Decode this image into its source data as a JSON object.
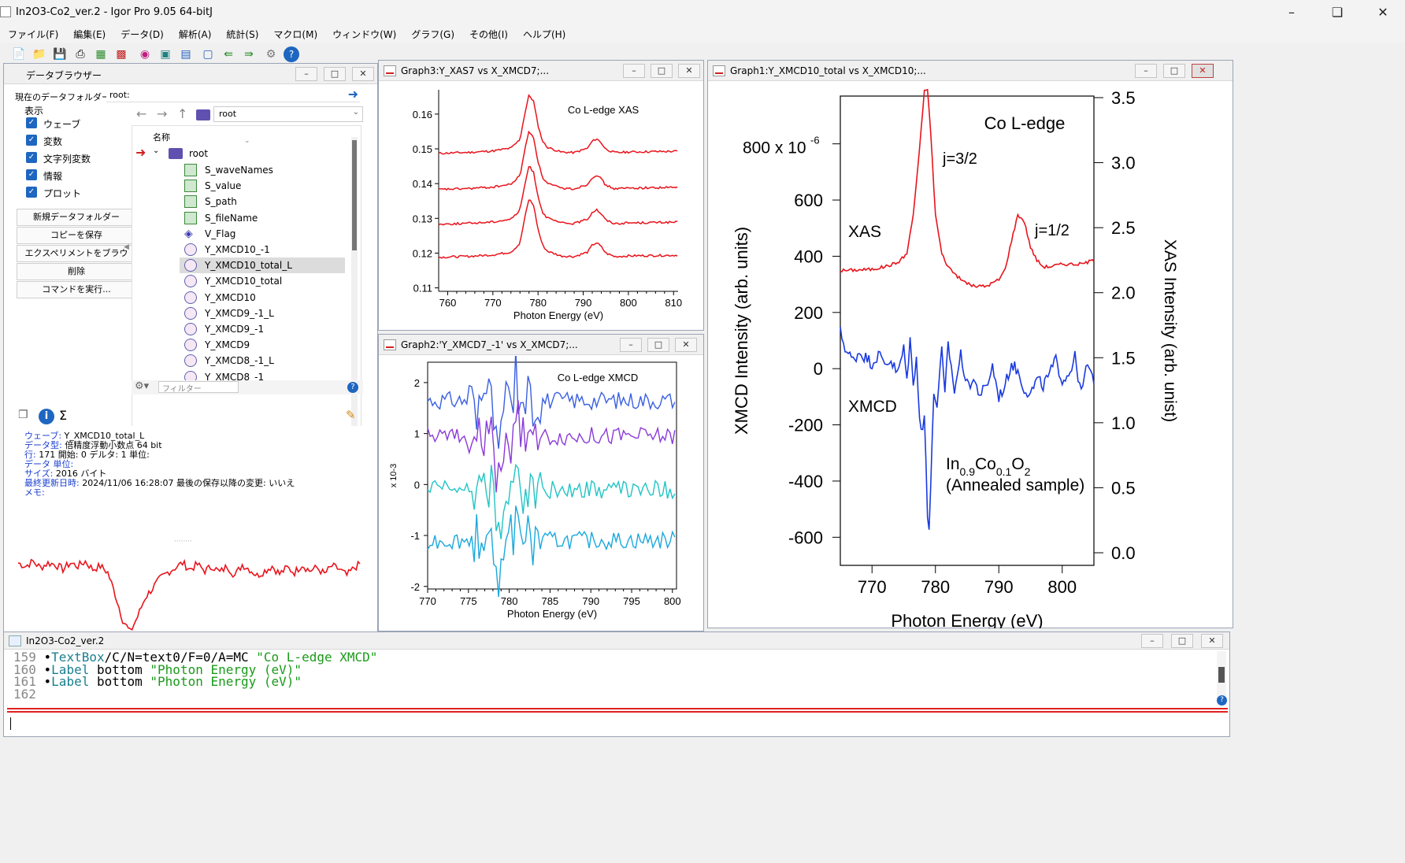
{
  "app": {
    "title": "In2O3-Co2_ver.2 - Igor Pro 9.05 64-bitJ"
  },
  "menu": [
    "ファイル(F)",
    "編集(E)",
    "データ(D)",
    "解析(A)",
    "統計(S)",
    "マクロ(M)",
    "ウィンドウ(W)",
    "グラフ(G)",
    "その他(I)",
    "ヘルプ(H)"
  ],
  "toolbar": {
    "icons": [
      "new-icon",
      "open-folder-icon",
      "save-icon",
      "print-icon",
      "table-icon",
      "graph-icon",
      "wave-icon",
      "browse-icon",
      "layout-icon",
      "window-icon",
      "back-arrow-icon",
      "forward-arrow-icon",
      "settings-icon",
      "help-icon"
    ]
  },
  "data_browser": {
    "title": "データブラウザー",
    "current_folder_label": "現在のデータフォルダー:",
    "current_folder_value": "root:",
    "display_label": "表示",
    "checkboxes": [
      "ウェーブ",
      "変数",
      "文字列変数",
      "情報",
      "プロット"
    ],
    "buttons": [
      "新規データフォルダー",
      "コピーを保存",
      "エクスペリメントをブラウズ...",
      "削除",
      "コマンドを実行..."
    ],
    "path_value": "root",
    "name_header": "名称",
    "root_label": "root",
    "items": [
      "S_waveNames",
      "S_value",
      "S_path",
      "S_fileName",
      "V_Flag",
      "Y_XMCD10_-1",
      "Y_XMCD10_total_L",
      "Y_XMCD10_total",
      "Y_XMCD10",
      "Y_XMCD9_-1_L",
      "Y_XMCD9_-1",
      "Y_XMCD9",
      "Y_XMCD8_-1_L",
      "Y_XMCD8_-1"
    ],
    "filter_placeholder": "フィルター",
    "info": [
      {
        "k": "ウェーブ:",
        "v": " Y_XMCD10_total_L"
      },
      {
        "k": "データ型:",
        "v": " 倍精度浮動小数点 64 bit"
      },
      {
        "k": "行:",
        "v": " 171  開始: 0  デルタ: 1  単位:"
      },
      {
        "k": "データ 単位:",
        "v": ""
      },
      {
        "k": "サイズ:",
        "v": " 2016 バイト"
      },
      {
        "k": "最終更新日時:",
        "v": "  2024/11/06 16:28:07   最後の保存以降の変更: いいえ"
      },
      {
        "k": "メモ:",
        "v": ""
      }
    ]
  },
  "graph3": {
    "title": "Graph3:Y_XAS7 vs X_XMCD7;..."
  },
  "graph2": {
    "title": "Graph2:'Y_XMCD7_-1' vs X_XMCD7;..."
  },
  "graph1": {
    "title": "Graph1:Y_XMCD10_total vs X_XMCD10;..."
  },
  "command_window": {
    "title": "In2O3-Co2_ver.2",
    "lines": [
      {
        "num": "159",
        "kw": "TextBox",
        "rest": "/C/N=text0/F=0/A=MC ",
        "str": "\"Co L-edge XMCD\""
      },
      {
        "num": "160",
        "kw": "Label",
        "rest": " bottom ",
        "str": "\"Photon Energy (eV)\""
      },
      {
        "num": "161",
        "kw": "Label",
        "rest": " bottom ",
        "str": "\"Photon Energy (eV)\""
      },
      {
        "num": "162",
        "kw": "",
        "rest": "",
        "str": ""
      }
    ]
  },
  "chart_data": [
    {
      "type": "line",
      "title": "Co L-edge XAS",
      "xlabel": "Photon Energy (eV)",
      "ylabel": "",
      "xlim": [
        758,
        811
      ],
      "ylim": [
        0.109,
        0.167
      ],
      "xticks": [
        "760",
        "770",
        "780",
        "790",
        "800",
        "810"
      ],
      "yticks": [
        "0.11",
        "0.12",
        "0.13",
        "0.14",
        "0.15",
        "0.16"
      ],
      "color": "#e8141c",
      "series": [
        {
          "offset": 0.1487
        },
        {
          "offset": 0.1383
        },
        {
          "offset": 0.1283
        },
        {
          "offset": 0.1188
        }
      ],
      "shape": {
        "x": [
          758,
          765,
          770,
          774,
          776,
          777,
          778,
          779,
          780,
          781,
          782,
          785,
          788,
          791,
          792,
          793,
          794,
          795,
          797,
          800,
          805,
          811
        ],
        "y": [
          0,
          0.0003,
          0.0007,
          0.0015,
          0.004,
          0.011,
          0.0168,
          0.015,
          0.008,
          0.0035,
          0.0018,
          0.0004,
          0.0002,
          0.0015,
          0.0035,
          0.0042,
          0.003,
          0.0012,
          0.0002,
          0.0004,
          0.0005,
          0.0006
        ]
      }
    },
    {
      "type": "line",
      "title": "Co L-edge XMCD",
      "xlabel": "Photon Energy (eV)",
      "ylabel": "x 10-3",
      "xlim": [
        770,
        800.5
      ],
      "ylim": [
        -2.05,
        2.4
      ],
      "xticks": [
        "770",
        "775",
        "780",
        "785",
        "790",
        "795",
        "800"
      ],
      "yticks": [
        "2",
        "1",
        "0",
        "-1",
        "-2"
      ],
      "series": [
        {
          "color": "#3a5fe0",
          "offset": 1.65
        },
        {
          "color": "#8a3ad8",
          "offset": 0.95
        },
        {
          "color": "#22c4c4",
          "offset": -0.1
        },
        {
          "color": "#1aa8dc",
          "offset": -1.1
        }
      ]
    },
    {
      "type": "line",
      "title": "Co L-edge",
      "xlabel": "Photon Energy (eV)",
      "ylabel": "XMCD Intensity (arb. units)",
      "y2label": "XAS Intensity (arb. unist)",
      "xlim": [
        765,
        805
      ],
      "ylim": [
        -700,
        970
      ],
      "y2lim": [
        0,
        3.5
      ],
      "xticks": [
        "770",
        "780",
        "790",
        "800"
      ],
      "yticks": [
        "-600",
        "-400",
        "-200",
        "0",
        "200",
        "400",
        "600"
      ],
      "ytop_label": "800 x 10",
      "ytop_exp": "-6",
      "y2ticks": [
        "0.0",
        "0.5",
        "1.0",
        "1.5",
        "2.0",
        "2.5",
        "3.0",
        "3.5"
      ],
      "annotations": [
        "j=3/2",
        "j=1/2",
        "XAS",
        "XMCD"
      ],
      "sample_text": {
        "base1": "In",
        "sub1": "0.9",
        "base2": "Co",
        "sub2": "0.1",
        "base3": "O",
        "sub3": "2",
        "line2": "(Annealed sample)"
      },
      "series": [
        {
          "name": "XAS",
          "color": "#e8141c",
          "axis": "right",
          "x": [
            765,
            770,
            772,
            774,
            775.5,
            776.5,
            777.5,
            778.3,
            778.8,
            779.3,
            780,
            781,
            782,
            784,
            786,
            788,
            790,
            791,
            792,
            793,
            794,
            795,
            796,
            797,
            798,
            800,
            803,
            805
          ],
          "y": [
            2.17,
            2.18,
            2.2,
            2.23,
            2.3,
            2.6,
            3.1,
            3.58,
            3.55,
            3.2,
            2.6,
            2.3,
            2.2,
            2.1,
            2.05,
            2.05,
            2.1,
            2.18,
            2.4,
            2.6,
            2.55,
            2.35,
            2.25,
            2.2,
            2.2,
            2.22,
            2.22,
            2.25
          ]
        },
        {
          "name": "XMCD",
          "color": "#1a3ae0",
          "axis": "left",
          "x": [
            765,
            766,
            767,
            768,
            769,
            770,
            771,
            772,
            773,
            774,
            775,
            775.5,
            776,
            776.5,
            777,
            777.5,
            778,
            778.3,
            778.6,
            778.9,
            779.2,
            779.5,
            779.8,
            780.2,
            780.6,
            781,
            781.5,
            782,
            783,
            784,
            785,
            786,
            787,
            788,
            789,
            790,
            791,
            792,
            793,
            794,
            795,
            796,
            797,
            798,
            799,
            800,
            801,
            802,
            803,
            804,
            805
          ],
          "y": [
            130,
            60,
            30,
            60,
            40,
            20,
            50,
            20,
            30,
            -20,
            70,
            -40,
            110,
            -70,
            60,
            -180,
            -230,
            -150,
            -420,
            -600,
            -460,
            -240,
            -80,
            -140,
            -30,
            60,
            -100,
            90,
            -80,
            50,
            -60,
            -40,
            -90,
            -70,
            10,
            -100,
            -60,
            20,
            -10,
            -70,
            -90,
            -40,
            -60,
            -20,
            30,
            -40,
            -20,
            40,
            -90,
            20,
            -60
          ]
        }
      ]
    },
    {
      "type": "line",
      "title": "",
      "xlabel": "",
      "ylabel": "",
      "series": [
        {
          "color": "#e8141c",
          "y": [
            0.5,
            0.4,
            0.55,
            0.35,
            0.5,
            0.45,
            0.3,
            0.5,
            0.4,
            0.55,
            0.3,
            0.4,
            0.2,
            -0.5,
            -1.3,
            -1.7,
            -1.2,
            -0.6,
            -0.3,
            0,
            0.2,
            0.35,
            0.5,
            0.3,
            0.45,
            0.25,
            0.4,
            0.2,
            0.4,
            0.1,
            0.45,
            0.3,
            0.1,
            0.25,
            0.4,
            0.15,
            0.35,
            0.2,
            0.45,
            0.25,
            0.35,
            0.15,
            0.4,
            0.3,
            0.1,
            0.35,
            0.5
          ]
        }
      ]
    }
  ]
}
